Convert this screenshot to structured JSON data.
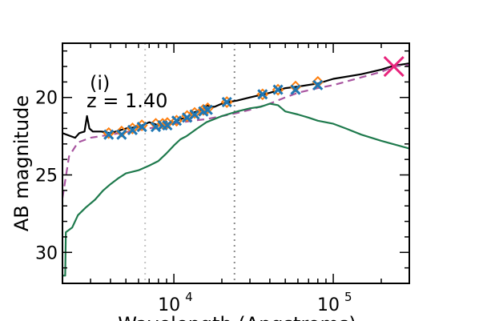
{
  "chart_data": {
    "type": "line",
    "panel_label": "(i)",
    "annotation": "z = 1.40",
    "xlabel": "Wavelength (Angstroms)",
    "ylabel": "AB magnitude",
    "x_scale": "log",
    "xlim": [
      2000,
      300000
    ],
    "ylim": [
      32,
      16.5
    ],
    "y_inverted": true,
    "x_ticks": [
      {
        "value": 10000,
        "base": "10",
        "exp": "4"
      },
      {
        "value": 100000,
        "base": "10",
        "exp": "5"
      }
    ],
    "y_ticks": [
      20,
      25,
      30
    ],
    "vlines": [
      {
        "x": 6600,
        "style": "light-dotted"
      },
      {
        "x": 24000,
        "style": "dark-dotted"
      }
    ],
    "series": [
      {
        "kind": "total-model",
        "color": "#000000",
        "dash": "solid",
        "points": [
          [
            2000,
            22.3
          ],
          [
            2400,
            22.6
          ],
          [
            2550,
            22.3
          ],
          [
            2750,
            22.2
          ],
          [
            2850,
            21.2
          ],
          [
            2950,
            22.0
          ],
          [
            3100,
            22.2
          ],
          [
            3500,
            22.2
          ],
          [
            4000,
            22.3
          ],
          [
            5000,
            22.0
          ],
          [
            6000,
            21.9
          ],
          [
            7000,
            21.6
          ],
          [
            8000,
            21.8
          ],
          [
            9000,
            21.7
          ],
          [
            10000,
            21.6
          ],
          [
            11000,
            21.4
          ],
          [
            12000,
            21.3
          ],
          [
            13000,
            21.0
          ],
          [
            14000,
            20.9
          ],
          [
            15000,
            20.8
          ],
          [
            16000,
            20.5
          ],
          [
            17000,
            20.6
          ],
          [
            18000,
            20.6
          ],
          [
            20000,
            20.4
          ],
          [
            22000,
            20.3
          ],
          [
            25000,
            20.2
          ],
          [
            30000,
            20.0
          ],
          [
            40000,
            19.7
          ],
          [
            50000,
            19.4
          ],
          [
            60000,
            19.3
          ],
          [
            80000,
            19.1
          ],
          [
            100000,
            18.8
          ],
          [
            150000,
            18.5
          ],
          [
            200000,
            18.2
          ],
          [
            240000,
            17.95
          ],
          [
            300000,
            17.8
          ]
        ]
      },
      {
        "kind": "dust-model",
        "color": "#a855a0",
        "dash": "dashed",
        "points": [
          [
            2000,
            26.5
          ],
          [
            2200,
            23.8
          ],
          [
            2500,
            22.9
          ],
          [
            3000,
            22.6
          ],
          [
            4000,
            22.4
          ],
          [
            6000,
            22.1
          ],
          [
            8000,
            21.9
          ],
          [
            10000,
            21.7
          ],
          [
            13000,
            21.5
          ],
          [
            16000,
            21.4
          ],
          [
            20000,
            21.2
          ],
          [
            25000,
            21.0
          ],
          [
            30000,
            20.8
          ],
          [
            40000,
            20.4
          ],
          [
            50000,
            20.0
          ],
          [
            60000,
            19.7
          ],
          [
            80000,
            19.4
          ],
          [
            100000,
            19.2
          ],
          [
            150000,
            18.7
          ],
          [
            200000,
            18.35
          ],
          [
            240000,
            18.0
          ],
          [
            300000,
            17.9
          ]
        ]
      },
      {
        "kind": "stellar-model",
        "color": "#1f7a4d",
        "dash": "solid",
        "points": [
          [
            2000,
            31.5
          ],
          [
            2080,
            31.5
          ],
          [
            2100,
            28.7
          ],
          [
            2300,
            28.4
          ],
          [
            2500,
            27.6
          ],
          [
            2800,
            27.1
          ],
          [
            3200,
            26.6
          ],
          [
            3600,
            26.0
          ],
          [
            4000,
            25.6
          ],
          [
            4500,
            25.2
          ],
          [
            5000,
            24.9
          ],
          [
            6000,
            24.7
          ],
          [
            7000,
            24.4
          ],
          [
            8000,
            24.1
          ],
          [
            9000,
            23.6
          ],
          [
            10000,
            23.1
          ],
          [
            11000,
            22.7
          ],
          [
            12000,
            22.5
          ],
          [
            14000,
            22.0
          ],
          [
            16000,
            21.6
          ],
          [
            20000,
            21.2
          ],
          [
            25000,
            20.9
          ],
          [
            30000,
            20.7
          ],
          [
            35000,
            20.6
          ],
          [
            40000,
            20.4
          ],
          [
            45000,
            20.5
          ],
          [
            50000,
            20.9
          ],
          [
            60000,
            21.1
          ],
          [
            70000,
            21.3
          ],
          [
            80000,
            21.5
          ],
          [
            100000,
            21.7
          ],
          [
            120000,
            22.0
          ],
          [
            150000,
            22.4
          ],
          [
            200000,
            22.8
          ],
          [
            300000,
            23.3
          ]
        ]
      }
    ],
    "photometry": [
      {
        "x": 3900,
        "y": 22.4,
        "model_y": 22.3
      },
      {
        "x": 4700,
        "y": 22.4,
        "model_y": 22.2
      },
      {
        "x": 5500,
        "y": 22.1,
        "model_y": 22.0
      },
      {
        "x": 6300,
        "y": 21.9,
        "model_y": 21.8
      },
      {
        "x": 7700,
        "y": 21.9,
        "model_y": 21.7
      },
      {
        "x": 8500,
        "y": 21.8,
        "model_y": 21.7
      },
      {
        "x": 9100,
        "y": 21.8,
        "model_y": 21.65
      },
      {
        "x": 10400,
        "y": 21.5,
        "model_y": 21.5
      },
      {
        "x": 12100,
        "y": 21.3,
        "model_y": 21.2
      },
      {
        "x": 13500,
        "y": 21.1,
        "model_y": 21.0
      },
      {
        "x": 15300,
        "y": 20.9,
        "model_y": 20.8
      },
      {
        "x": 16300,
        "y": 20.8,
        "model_y": 20.7
      },
      {
        "x": 21500,
        "y": 20.3,
        "model_y": 20.3
      },
      {
        "x": 36000,
        "y": 19.8,
        "model_y": 19.8
      },
      {
        "x": 45000,
        "y": 19.5,
        "model_y": 19.5
      },
      {
        "x": 58000,
        "y": 19.5,
        "model_y": 19.3
      },
      {
        "x": 80000,
        "y": 19.2,
        "model_y": 19.0
      },
      {
        "x": 240000,
        "y": 18.0,
        "model_y": 17.95,
        "highlight": true
      }
    ],
    "colors": {
      "data": "#1f77b4",
      "model_point": "#ff7f0e",
      "highlight": "#e8247c",
      "vline_light": "#c4c4c4",
      "vline_dark": "#8a8a8a"
    }
  }
}
